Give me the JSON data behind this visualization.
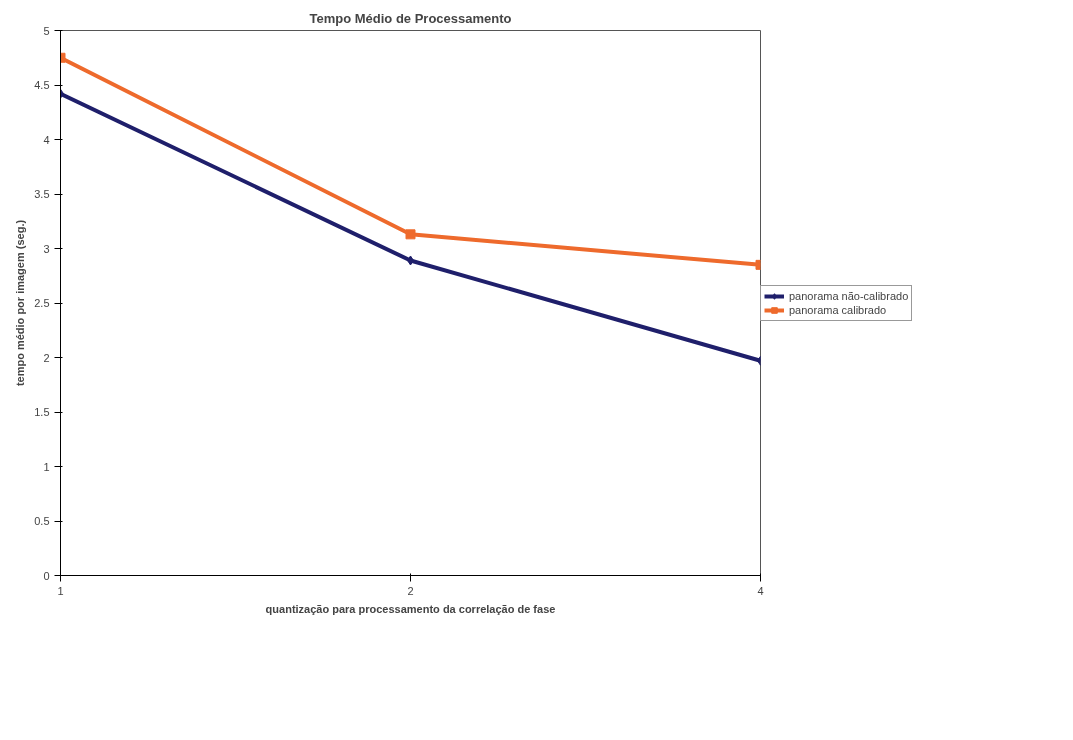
{
  "chart_data": {
    "type": "line",
    "title": "Tempo Médio de Processamento",
    "xlabel": "quantização para processamento da correlação de fase",
    "ylabel": "tempo médio por imagem (seg.)",
    "categories": [
      "1",
      "2",
      "4"
    ],
    "series": [
      {
        "name": "panorama não-calibrado",
        "color": "#1f1f6b",
        "marker": "diamond",
        "values": [
          4.42,
          2.89,
          1.97
        ]
      },
      {
        "name": "panorama calibrado",
        "color": "#ee6a2c",
        "marker": "square",
        "values": [
          4.75,
          3.13,
          2.85
        ]
      }
    ],
    "ylim": [
      0,
      5
    ],
    "yticks": [
      0,
      0.5,
      1,
      1.5,
      2,
      2.5,
      3,
      3.5,
      4,
      4.5,
      5
    ],
    "grid": false,
    "legend": "right",
    "line_style": "solid"
  }
}
